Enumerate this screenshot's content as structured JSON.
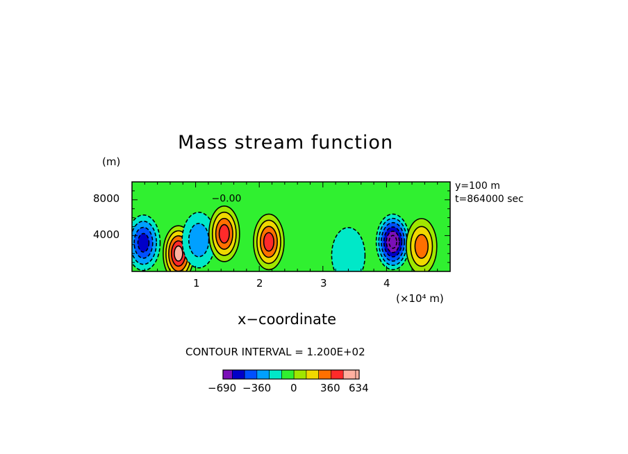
{
  "chart_data": {
    "type": "heatmap",
    "title": "Mass stream function",
    "xlabel": "x−coordinate",
    "x_unit_label": "(×10⁴ m)",
    "y_unit_label": "(m)",
    "xlim": [
      0,
      50000
    ],
    "ylim": [
      0,
      10000
    ],
    "x_ticks": [
      {
        "value": 10000,
        "label": "1"
      },
      {
        "value": 20000,
        "label": "2"
      },
      {
        "value": 30000,
        "label": "3"
      },
      {
        "value": 40000,
        "label": "4"
      }
    ],
    "y_ticks": [
      {
        "value": 4000,
        "label": "4000"
      },
      {
        "value": 8000,
        "label": "8000"
      }
    ],
    "annotations": [
      "y=100 m",
      "t=864000 sec"
    ],
    "contour_label": "−0.00",
    "contour_interval_text": "CONTOUR INTERVAL = 1.200E+02",
    "value_range": [
      -690,
      634
    ],
    "colorbar": {
      "colors": [
        "#7b10b8",
        "#0000c8",
        "#0050ff",
        "#00a0ff",
        "#00e8c8",
        "#30f030",
        "#a0e600",
        "#f0d800",
        "#ff7000",
        "#ff2a2a",
        "#ffb0a0"
      ],
      "tick_labels": [
        "−690",
        "−360",
        "0",
        "360",
        "634"
      ]
    },
    "features": [
      {
        "kind": "min",
        "x": 1800,
        "y": 3200,
        "value": -480
      },
      {
        "kind": "max",
        "x": 7300,
        "y": 2000,
        "value": 634
      },
      {
        "kind": "min",
        "x": 10500,
        "y": 3500,
        "value": -240
      },
      {
        "kind": "max",
        "x": 14500,
        "y": 4200,
        "value": 480
      },
      {
        "kind": "max",
        "x": 21500,
        "y": 3300,
        "value": 480
      },
      {
        "kind": "min",
        "x": 34000,
        "y": 1800,
        "value": -120
      },
      {
        "kind": "min",
        "x": 41000,
        "y": 3300,
        "value": -690
      },
      {
        "kind": "max",
        "x": 45500,
        "y": 2800,
        "value": 360
      }
    ]
  }
}
